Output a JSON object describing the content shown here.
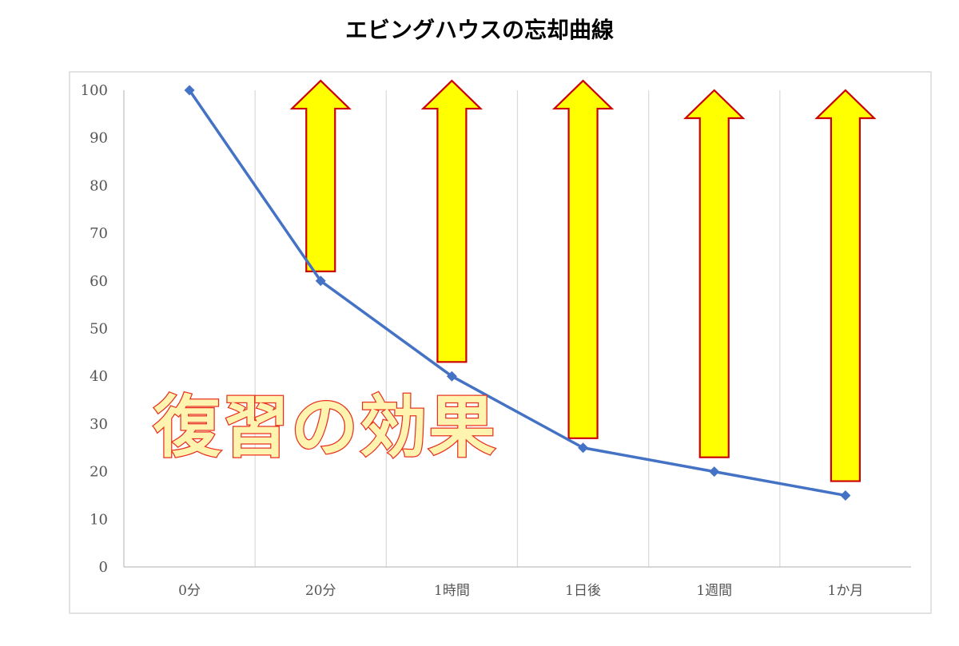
{
  "chart_data": {
    "type": "line",
    "title": "エビングハウスの忘却曲線",
    "categories": [
      "0分",
      "20分",
      "1時間",
      "1日後",
      "1週間",
      "1か月"
    ],
    "series": [
      {
        "values": [
          100,
          60,
          40,
          25,
          20,
          15
        ],
        "color": "#4472c4"
      }
    ],
    "ylim": [
      0,
      100
    ],
    "yticks": [
      "0",
      "10",
      "20",
      "30",
      "40",
      "50",
      "60",
      "70",
      "80",
      "90",
      "100"
    ],
    "grid": "vertical",
    "annotation": {
      "text": "復習の効果",
      "color": "#e8301c",
      "arrows": [
        {
          "category": "20分",
          "from": 62,
          "to": 102
        },
        {
          "category": "1時間",
          "from": 43,
          "to": 102
        },
        {
          "category": "1日後",
          "from": 27,
          "to": 102
        },
        {
          "category": "1週間",
          "from": 23,
          "to": 100
        },
        {
          "category": "1か月",
          "from": 18,
          "to": 100
        }
      ],
      "arrow_fill": "#ffff00",
      "arrow_stroke": "#cc0000"
    }
  }
}
